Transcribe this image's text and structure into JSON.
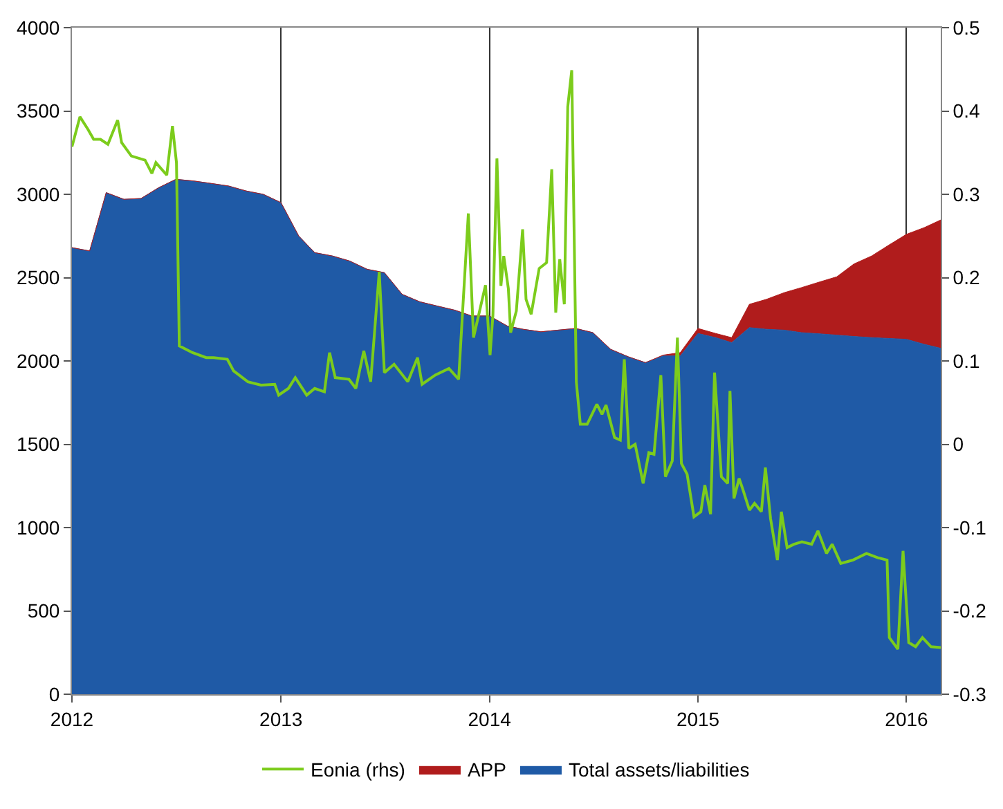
{
  "chart_data": {
    "type": "area",
    "stacked": true,
    "grid": "x",
    "legend": "bottom",
    "marker": "none",
    "line_style": "solid",
    "x": [
      "2012-01-01",
      "2012-02-01",
      "2012-03-01",
      "2012-04-01",
      "2012-05-01",
      "2012-06-01",
      "2012-07-01",
      "2012-08-01",
      "2012-09-01",
      "2012-10-01",
      "2012-11-01",
      "2012-12-01",
      "2013-01-01",
      "2013-02-01",
      "2013-03-01",
      "2013-04-01",
      "2013-05-01",
      "2013-06-01",
      "2013-07-01",
      "2013-08-01",
      "2013-09-01",
      "2013-10-01",
      "2013-11-01",
      "2013-12-01",
      "2014-01-01",
      "2014-02-01",
      "2014-03-01",
      "2014-04-01",
      "2014-05-01",
      "2014-06-01",
      "2014-07-01",
      "2014-08-01",
      "2014-09-01",
      "2014-10-01",
      "2014-11-01",
      "2014-12-01",
      "2015-01-01",
      "2015-02-01",
      "2015-03-01",
      "2015-04-01",
      "2015-05-01",
      "2015-06-01",
      "2015-07-01",
      "2015-08-01",
      "2015-09-01",
      "2015-10-01",
      "2015-11-01",
      "2015-12-01",
      "2016-01-01",
      "2016-02-01",
      "2016-03-01"
    ],
    "series": [
      {
        "name": "Total assets/liabilities",
        "color": "#1f5aa6",
        "values": [
          2680,
          2660,
          3010,
          2970,
          2975,
          3040,
          3090,
          3080,
          3065,
          3050,
          3020,
          3000,
          2950,
          2750,
          2650,
          2630,
          2600,
          2550,
          2530,
          2400,
          2355,
          2330,
          2305,
          2270,
          2270,
          2210,
          2190,
          2175,
          2185,
          2195,
          2170,
          2070,
          2025,
          1990,
          2030,
          2030,
          2165,
          2140,
          2110,
          2200,
          2190,
          2185,
          2170,
          2163,
          2155,
          2147,
          2140,
          2135,
          2130,
          2100,
          2076
        ]
      },
      {
        "name": "APP",
        "color": "#b01c1c",
        "values": [
          0,
          0,
          0,
          0,
          0,
          0,
          0,
          0,
          0,
          0,
          0,
          0,
          0,
          0,
          0,
          0,
          0,
          0,
          0,
          0,
          0,
          0,
          0,
          0,
          0,
          0,
          0,
          0,
          0,
          0,
          0,
          0,
          0,
          0,
          5,
          20,
          30,
          25,
          30,
          140,
          180,
          225,
          270,
          310,
          350,
          435,
          490,
          560,
          630,
          700,
          770
        ]
      },
      {
        "name": "Eonia (rhs)",
        "type": "line",
        "axis": "y2",
        "color": "#7ccc1c",
        "x": [
          "2012-01-01",
          "2012-01-15",
          "2012-01-29",
          "2012-02-08",
          "2012-02-20",
          "2012-03-04",
          "2012-03-21",
          "2012-03-28",
          "2012-04-14",
          "2012-05-08",
          "2012-05-20",
          "2012-05-27",
          "2012-06-15",
          "2012-06-25",
          "2012-07-02",
          "2012-07-07",
          "2012-07-30",
          "2012-08-23",
          "2012-09-05",
          "2012-09-29",
          "2012-10-10",
          "2012-11-04",
          "2012-11-27",
          "2012-12-21",
          "2012-12-28",
          "2013-01-14",
          "2013-01-26",
          "2013-02-15",
          "2013-03-01",
          "2013-03-18",
          "2013-03-27",
          "2013-04-06",
          "2013-04-30",
          "2013-05-12",
          "2013-05-26",
          "2013-06-07",
          "2013-06-22",
          "2013-07-01",
          "2013-07-18",
          "2013-08-11",
          "2013-08-28",
          "2013-09-05",
          "2013-09-28",
          "2013-10-22",
          "2013-11-08",
          "2013-11-25",
          "2013-12-04",
          "2013-12-25",
          "2014-01-02",
          "2014-01-07",
          "2014-01-14",
          "2014-01-21",
          "2014-01-26",
          "2014-02-03",
          "2014-02-07",
          "2014-02-17",
          "2014-02-28",
          "2014-03-06",
          "2014-03-15",
          "2014-03-29",
          "2014-04-11",
          "2014-04-20",
          "2014-04-27",
          "2014-05-04",
          "2014-05-12",
          "2014-05-18",
          "2014-05-25",
          "2014-06-02",
          "2014-06-09",
          "2014-06-21",
          "2014-07-08",
          "2014-07-17",
          "2014-07-24",
          "2014-08-08",
          "2014-08-18",
          "2014-08-25",
          "2014-09-02",
          "2014-09-13",
          "2014-09-27",
          "2014-10-07",
          "2014-10-16",
          "2014-10-28",
          "2014-11-05",
          "2014-11-17",
          "2014-11-26",
          "2014-12-03",
          "2014-12-13",
          "2014-12-25",
          "2015-01-06",
          "2015-01-13",
          "2015-01-23",
          "2015-01-30",
          "2015-02-11",
          "2015-02-22",
          "2015-02-26",
          "2015-03-05",
          "2015-03-14",
          "2015-03-21",
          "2015-04-01",
          "2015-04-10",
          "2015-04-22",
          "2015-04-29",
          "2015-05-08",
          "2015-05-20",
          "2015-05-27",
          "2015-06-06",
          "2015-06-18",
          "2015-07-02",
          "2015-07-19",
          "2015-07-30",
          "2015-08-14",
          "2015-08-24",
          "2015-09-08",
          "2015-09-29",
          "2015-10-23",
          "2015-11-11",
          "2015-11-28",
          "2015-12-02",
          "2015-12-17",
          "2015-12-26",
          "2016-01-05",
          "2016-01-17",
          "2016-01-29",
          "2016-02-13",
          "2016-03-01"
        ],
        "values": [
          0.357,
          0.393,
          0.378,
          0.366,
          0.366,
          0.36,
          0.389,
          0.362,
          0.346,
          0.341,
          0.325,
          0.338,
          0.323,
          0.382,
          0.338,
          0.118,
          0.11,
          0.104,
          0.104,
          0.102,
          0.088,
          0.075,
          0.071,
          0.072,
          0.059,
          0.067,
          0.08,
          0.059,
          0.067,
          0.063,
          0.11,
          0.08,
          0.078,
          0.067,
          0.112,
          0.075,
          0.207,
          0.086,
          0.096,
          0.075,
          0.104,
          0.072,
          0.083,
          0.091,
          0.078,
          0.277,
          0.128,
          0.191,
          0.107,
          0.155,
          0.343,
          0.19,
          0.226,
          0.187,
          0.134,
          0.16,
          0.258,
          0.174,
          0.156,
          0.211,
          0.218,
          0.33,
          0.158,
          0.222,
          0.168,
          0.405,
          0.449,
          0.075,
          0.024,
          0.024,
          0.048,
          0.036,
          0.047,
          0.008,
          0.005,
          0.102,
          -0.005,
          0.0,
          -0.047,
          -0.01,
          -0.012,
          0.083,
          -0.039,
          -0.02,
          0.128,
          -0.023,
          -0.036,
          -0.087,
          -0.081,
          -0.049,
          -0.084,
          0.086,
          -0.039,
          -0.047,
          0.064,
          -0.065,
          -0.041,
          -0.055,
          -0.079,
          -0.071,
          -0.081,
          -0.028,
          -0.089,
          -0.139,
          -0.081,
          -0.124,
          -0.12,
          -0.117,
          -0.12,
          -0.104,
          -0.131,
          -0.12,
          -0.143,
          -0.139,
          -0.131,
          -0.136,
          -0.139,
          -0.232,
          -0.246,
          -0.128,
          -0.238,
          -0.243,
          -0.232,
          -0.243,
          -0.244
        ]
      }
    ],
    "xlim": [
      "2012-01-01",
      "2016-03-01"
    ],
    "xticks": [
      {
        "value": "2012",
        "label": "2012"
      },
      {
        "value": "2013",
        "label": "2013"
      },
      {
        "value": "2014",
        "label": "2014"
      },
      {
        "value": "2015",
        "label": "2015"
      },
      {
        "value": "2016",
        "label": "2016"
      }
    ],
    "ylim": [
      0,
      4000
    ],
    "yticks": [
      0,
      500,
      1000,
      1500,
      2000,
      2500,
      3000,
      3500,
      4000
    ],
    "y2lim": [
      -0.3,
      0.5
    ],
    "y2ticks": [
      -0.3,
      -0.2,
      -0.1,
      0,
      0.1,
      0.2,
      0.3,
      0.4,
      0.5
    ]
  }
}
